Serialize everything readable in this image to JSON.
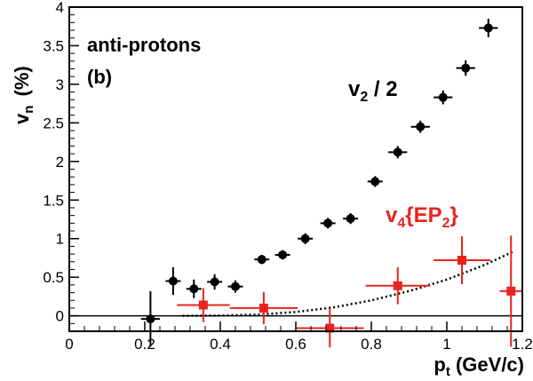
{
  "chart_data": {
    "type": "scatter",
    "xlim": [
      0,
      1.2
    ],
    "ylim": [
      -0.2,
      4
    ],
    "x_ticks": [
      0,
      0.2,
      0.4,
      0.6,
      0.8,
      1,
      1.2
    ],
    "x_tick_labels": [
      "0",
      "0.2",
      "0.4",
      "0.6",
      "0.8",
      "1",
      "1.2"
    ],
    "y_ticks": [
      0,
      0.5,
      1,
      1.5,
      2,
      2.5,
      3,
      3.5,
      4
    ],
    "y_tick_labels": [
      "0",
      "0.5",
      "1",
      "1.5",
      "2",
      "2.5",
      "3",
      "3.5",
      "4"
    ],
    "grid": false,
    "xlabel": {
      "main": "p",
      "sub": "t",
      "rest": " (GeV/c)"
    },
    "ylabel": {
      "main": "v",
      "sub": "n",
      "rest": " (%)"
    },
    "annotations": {
      "line1": "anti-protons",
      "line2": "(b)",
      "v2_label": {
        "main": "v",
        "sub": "2",
        "rest": " / 2"
      },
      "v4_label": {
        "main": "v",
        "sub": "4",
        "open": "{EP",
        "sub2": "2",
        "close": "}"
      }
    },
    "series": [
      {
        "marker": "circle",
        "color": "#000000",
        "points": [
          {
            "x": 0.215,
            "y": -0.04,
            "xerr": 0.025,
            "yerr": 0.36
          },
          {
            "x": 0.275,
            "y": 0.45,
            "xerr": 0.02,
            "yerr": 0.18
          },
          {
            "x": 0.33,
            "y": 0.35,
            "xerr": 0.02,
            "yerr": 0.12
          },
          {
            "x": 0.385,
            "y": 0.44,
            "xerr": 0.02,
            "yerr": 0.1
          },
          {
            "x": 0.44,
            "y": 0.38,
            "xerr": 0.02,
            "yerr": 0.08
          },
          {
            "x": 0.51,
            "y": 0.73,
            "xerr": 0.02,
            "yerr": 0.06
          },
          {
            "x": 0.565,
            "y": 0.79,
            "xerr": 0.02,
            "yerr": 0.06
          },
          {
            "x": 0.625,
            "y": 1.0,
            "xerr": 0.02,
            "yerr": 0.07
          },
          {
            "x": 0.685,
            "y": 1.2,
            "xerr": 0.02,
            "yerr": 0.07
          },
          {
            "x": 0.745,
            "y": 1.26,
            "xerr": 0.02,
            "yerr": 0.07
          },
          {
            "x": 0.81,
            "y": 1.74,
            "xerr": 0.02,
            "yerr": 0.07
          },
          {
            "x": 0.87,
            "y": 2.12,
            "xerr": 0.025,
            "yerr": 0.08
          },
          {
            "x": 0.93,
            "y": 2.45,
            "xerr": 0.025,
            "yerr": 0.08
          },
          {
            "x": 0.99,
            "y": 2.83,
            "xerr": 0.025,
            "yerr": 0.09
          },
          {
            "x": 1.05,
            "y": 3.21,
            "xerr": 0.025,
            "yerr": 0.1
          },
          {
            "x": 1.11,
            "y": 3.73,
            "xerr": 0.025,
            "yerr": 0.12
          }
        ]
      },
      {
        "marker": "square",
        "color": "#e8231d",
        "points": [
          {
            "x": 0.355,
            "y": 0.14,
            "xerr": 0.07,
            "yerr": 0.22
          },
          {
            "x": 0.515,
            "y": 0.1,
            "xerr": 0.09,
            "yerr": 0.21
          },
          {
            "x": 0.69,
            "y": -0.16,
            "xerr": 0.09,
            "yerr": 0.25
          },
          {
            "x": 0.87,
            "y": 0.39,
            "xerr": 0.085,
            "yerr": 0.24
          },
          {
            "x": 1.04,
            "y": 0.72,
            "xerr": 0.075,
            "yerr": 0.31
          },
          {
            "x": 1.17,
            "y": 0.32,
            "xerr": 0.03,
            "yerr": 0.72
          }
        ]
      }
    ],
    "fit_curve": {
      "style": "dotted",
      "color": "#000000",
      "points": [
        [
          0.3,
          0.0
        ],
        [
          0.4,
          0.004
        ],
        [
          0.5,
          0.016
        ],
        [
          0.6,
          0.05
        ],
        [
          0.7,
          0.11
        ],
        [
          0.8,
          0.2
        ],
        [
          0.9,
          0.32
        ],
        [
          1.0,
          0.47
        ],
        [
          1.1,
          0.66
        ],
        [
          1.18,
          0.84
        ]
      ]
    },
    "zero_line": 0
  }
}
